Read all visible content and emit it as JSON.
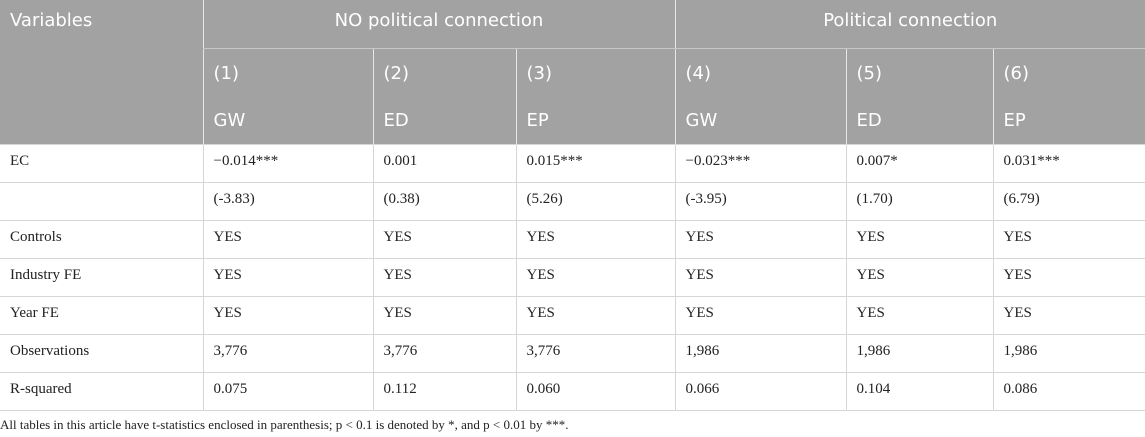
{
  "table": {
    "corner": "Variables",
    "groups": [
      "NO political connection",
      "Political connection"
    ],
    "numbers": [
      "(1)",
      "(2)",
      "(3)",
      "(4)",
      "(5)",
      "(6)"
    ],
    "deps": [
      "GW",
      "ED",
      "EP",
      "GW",
      "ED",
      "EP"
    ],
    "rows": [
      [
        "EC",
        "−0.014***",
        "0.001",
        "0.015***",
        "−0.023***",
        "0.007*",
        "0.031***"
      ],
      [
        "",
        "(-3.83)",
        "(0.38)",
        "(5.26)",
        "(-3.95)",
        "(1.70)",
        "(6.79)"
      ],
      [
        "Controls",
        "YES",
        "YES",
        "YES",
        "YES",
        "YES",
        "YES"
      ],
      [
        "Industry FE",
        "YES",
        "YES",
        "YES",
        "YES",
        "YES",
        "YES"
      ],
      [
        "Year FE",
        "YES",
        "YES",
        "YES",
        "YES",
        "YES",
        "YES"
      ],
      [
        "Observations",
        "3,776",
        "3,776",
        "3,776",
        "1,986",
        "1,986",
        "1,986"
      ],
      [
        "R-squared",
        "0.075",
        "0.112",
        "0.060",
        "0.066",
        "0.104",
        "0.086"
      ]
    ]
  },
  "footnote": "All tables in this article have t-statistics enclosed in parenthesis; p < 0.1 is denoted by *, and p < 0.01 by ***."
}
